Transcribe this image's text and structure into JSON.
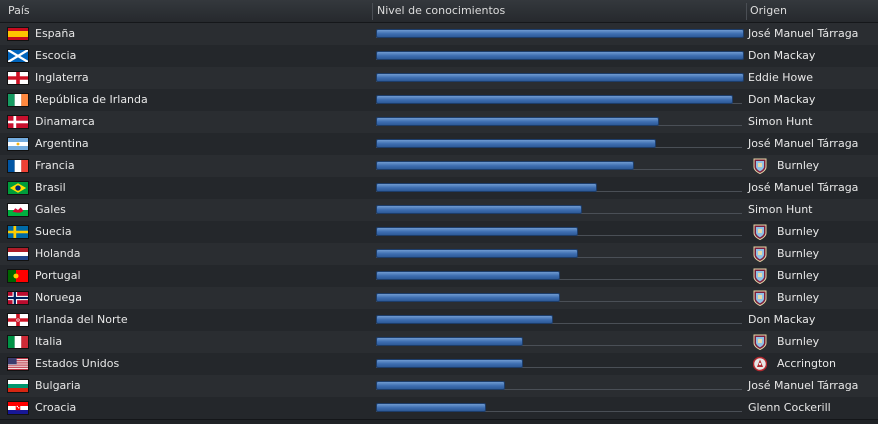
{
  "header": {
    "country_label": "País",
    "knowledge_label": "Nivel de conocimientos",
    "origin_label": "Origen"
  },
  "rows": [
    {
      "country": "España",
      "flag": "spain-flag-icon",
      "level": 1.0,
      "origin": "José Manuel Tárraga",
      "origin_icon": null
    },
    {
      "country": "Escocia",
      "flag": "scotland-flag-icon",
      "level": 1.0,
      "origin": "Don Mackay",
      "origin_icon": null
    },
    {
      "country": "Inglaterra",
      "flag": "england-flag-icon",
      "level": 1.0,
      "origin": "Eddie Howe",
      "origin_icon": null
    },
    {
      "country": "República de Irlanda",
      "flag": "ireland-flag-icon",
      "level": 0.97,
      "origin": "Don Mackay",
      "origin_icon": null
    },
    {
      "country": "Dinamarca",
      "flag": "denmark-flag-icon",
      "level": 0.77,
      "origin": "Simon Hunt",
      "origin_icon": null
    },
    {
      "country": "Argentina",
      "flag": "argentina-flag-icon",
      "level": 0.76,
      "origin": "José Manuel Tárraga",
      "origin_icon": null
    },
    {
      "country": "Francia",
      "flag": "france-flag-icon",
      "level": 0.7,
      "origin": "Burnley",
      "origin_icon": "burnley-crest-icon"
    },
    {
      "country": "Brasil",
      "flag": "brazil-flag-icon",
      "level": 0.6,
      "origin": "José Manuel Tárraga",
      "origin_icon": null
    },
    {
      "country": "Gales",
      "flag": "wales-flag-icon",
      "level": 0.56,
      "origin": "Simon Hunt",
      "origin_icon": null
    },
    {
      "country": "Suecia",
      "flag": "sweden-flag-icon",
      "level": 0.55,
      "origin": "Burnley",
      "origin_icon": "burnley-crest-icon"
    },
    {
      "country": "Holanda",
      "flag": "netherlands-flag-icon",
      "level": 0.55,
      "origin": "Burnley",
      "origin_icon": "burnley-crest-icon"
    },
    {
      "country": "Portugal",
      "flag": "portugal-flag-icon",
      "level": 0.5,
      "origin": "Burnley",
      "origin_icon": "burnley-crest-icon"
    },
    {
      "country": "Noruega",
      "flag": "norway-flag-icon",
      "level": 0.5,
      "origin": "Burnley",
      "origin_icon": "burnley-crest-icon"
    },
    {
      "country": "Irlanda del Norte",
      "flag": "northern-ireland-flag-icon",
      "level": 0.48,
      "origin": "Don Mackay",
      "origin_icon": null
    },
    {
      "country": "Italia",
      "flag": "italy-flag-icon",
      "level": 0.4,
      "origin": "Burnley",
      "origin_icon": "burnley-crest-icon"
    },
    {
      "country": "Estados Unidos",
      "flag": "usa-flag-icon",
      "level": 0.4,
      "origin": "Accrington",
      "origin_icon": "accrington-crest-icon"
    },
    {
      "country": "Bulgaria",
      "flag": "bulgaria-flag-icon",
      "level": 0.35,
      "origin": "José Manuel Tárraga",
      "origin_icon": null
    },
    {
      "country": "Croacia",
      "flag": "croatia-flag-icon",
      "level": 0.3,
      "origin": "Glenn Cockerill",
      "origin_icon": null
    }
  ],
  "colors": {
    "bar": "#3d6db0",
    "row_even": "#2a2d31",
    "row_odd": "#24272b"
  }
}
